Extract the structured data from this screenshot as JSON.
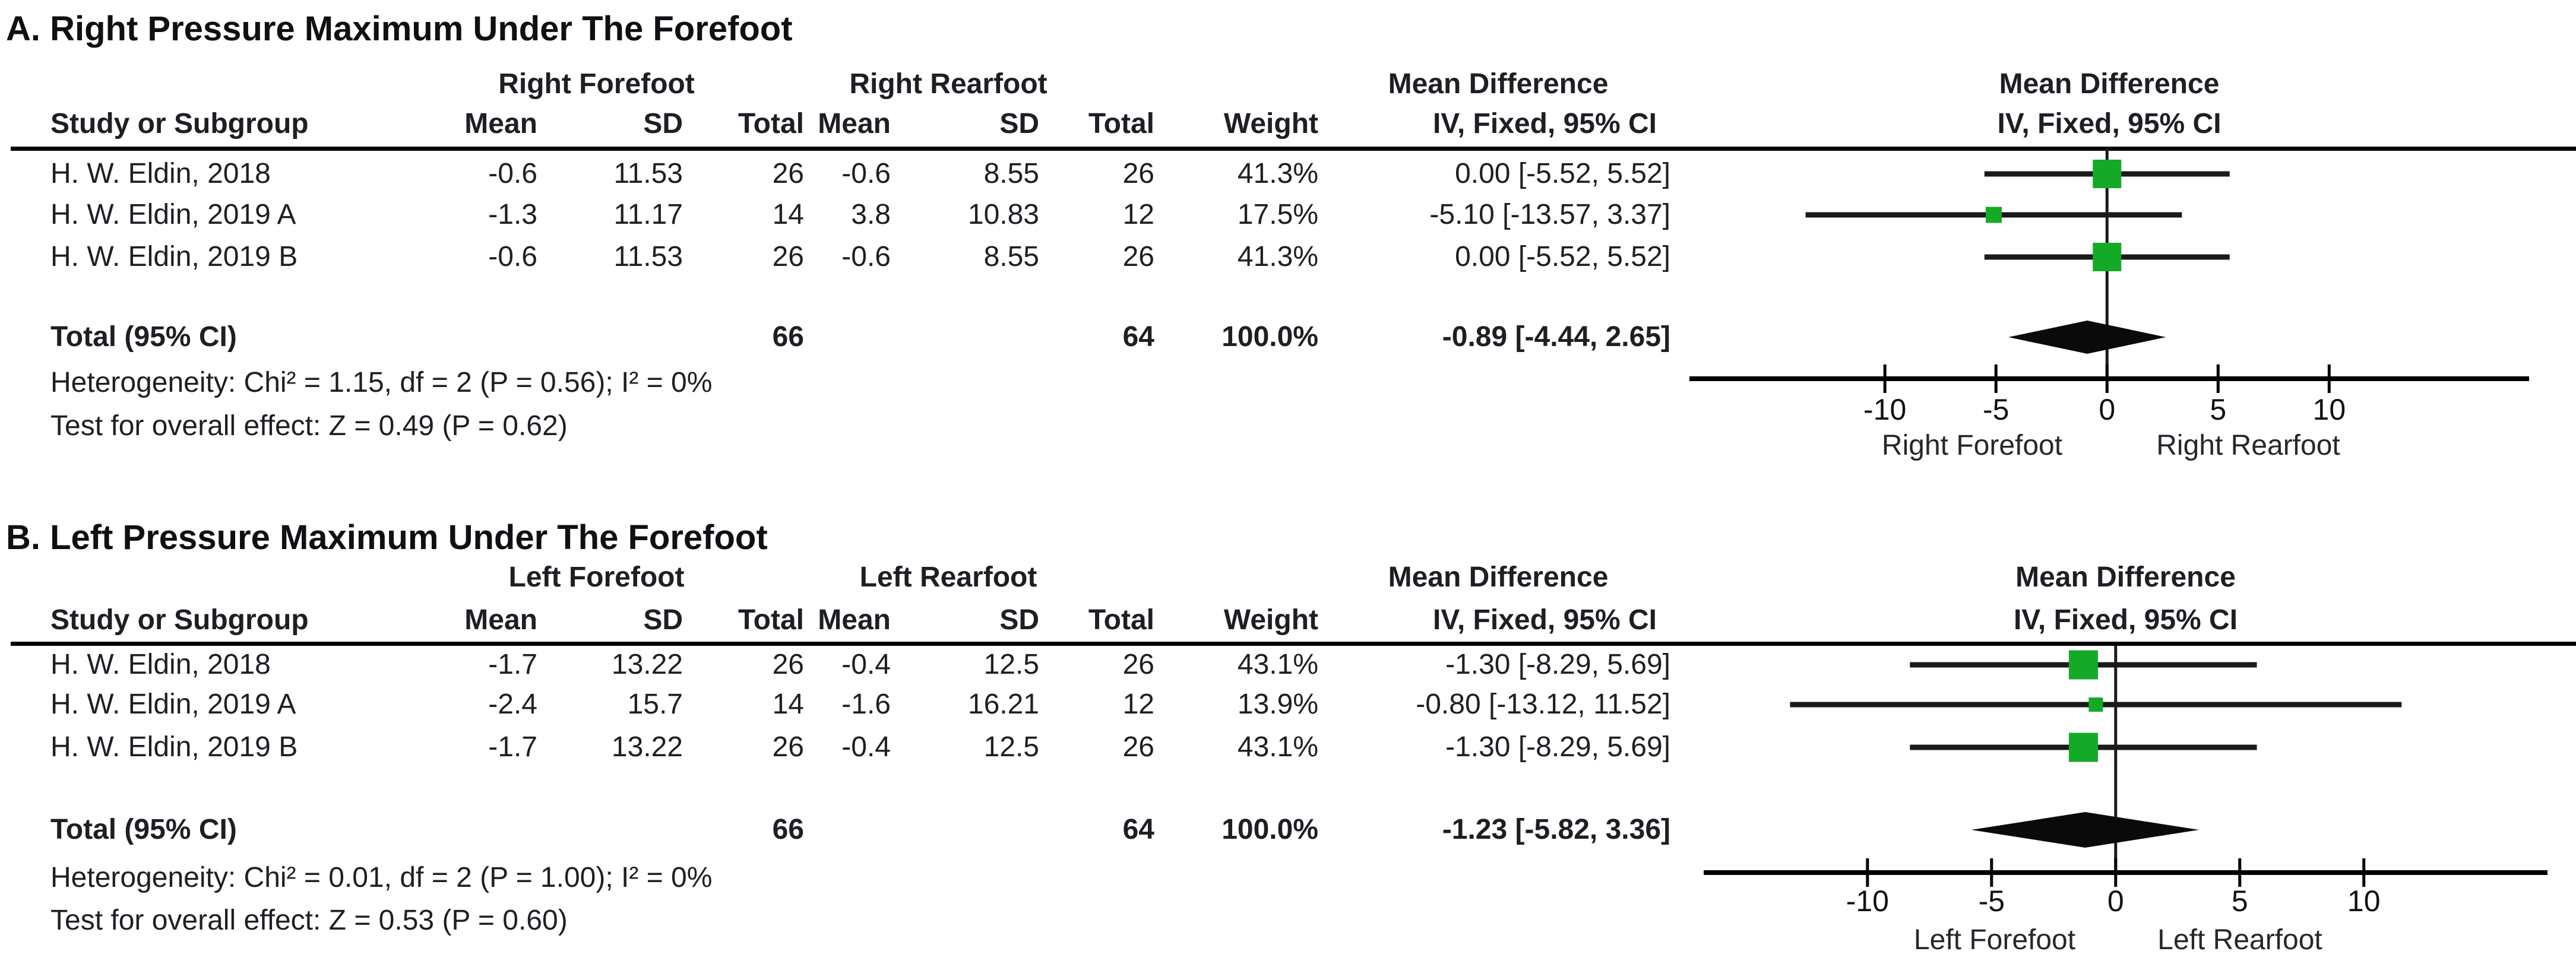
{
  "colors": {
    "square_green": "#14aa28",
    "diamond_black": "#0a0a0a",
    "line_black": "#1a1a1a"
  },
  "chart_data": [
    {
      "type": "forest",
      "title": "A. Right Pressure Maximum Under The Forefoot",
      "group1_header": "Right Forefoot",
      "group2_header": "Right Rearfoot",
      "effect_header": "Mean Difference",
      "effect_subheader": "IV, Fixed, 95% CI",
      "plot_header": "Mean Difference",
      "plot_subheader": "IV, Fixed, 95% CI",
      "columns": {
        "study": "Study or Subgroup",
        "mean": "Mean",
        "sd": "SD",
        "total": "Total",
        "weight": "Weight"
      },
      "rows": [
        {
          "study": "H. W. Eldin, 2018",
          "mean1": "-0.6",
          "sd1": "11.53",
          "total1": "26",
          "mean2": "-0.6",
          "sd2": "8.55",
          "total2": "26",
          "weight": "41.3%",
          "ci_text": "0.00 [-5.52, 5.52]",
          "est": 0.0,
          "lo": -5.52,
          "hi": 5.52,
          "weight_val": 41.3
        },
        {
          "study": "H. W. Eldin, 2019 A",
          "mean1": "-1.3",
          "sd1": "11.17",
          "total1": "14",
          "mean2": "3.8",
          "sd2": "10.83",
          "total2": "12",
          "weight": "17.5%",
          "ci_text": "-5.10 [-13.57, 3.37]",
          "est": -5.1,
          "lo": -13.57,
          "hi": 3.37,
          "weight_val": 17.5
        },
        {
          "study": "H. W. Eldin, 2019 B",
          "mean1": "-0.6",
          "sd1": "11.53",
          "total1": "26",
          "mean2": "-0.6",
          "sd2": "8.55",
          "total2": "26",
          "weight": "41.3%",
          "ci_text": "0.00 [-5.52, 5.52]",
          "est": 0.0,
          "lo": -5.52,
          "hi": 5.52,
          "weight_val": 41.3
        }
      ],
      "total": {
        "label": "Total (95% CI)",
        "total1": "66",
        "total2": "64",
        "weight": "100.0%",
        "ci_text": "-0.89 [-4.44, 2.65]",
        "est": -0.89,
        "lo": -4.44,
        "hi": 2.65
      },
      "heterogeneity": "Heterogeneity: Chi² = 1.15, df = 2 (P = 0.56); I² = 0%",
      "overall_effect": "Test for overall effect: Z = 0.49 (P = 0.62)",
      "axis": {
        "ticks": [
          -10,
          -5,
          0,
          5,
          10
        ],
        "min": -18.8,
        "max": 19.0,
        "xlabel_left": "Right Forefoot",
        "xlabel_right": "Right Rearfoot"
      }
    },
    {
      "type": "forest",
      "title": "B. Left Pressure Maximum Under The Forefoot",
      "group1_header": "Left Forefoot",
      "group2_header": "Left Rearfoot",
      "effect_header": "Mean Difference",
      "effect_subheader": "IV, Fixed, 95% CI",
      "plot_header": "Mean Difference",
      "plot_subheader": "IV, Fixed, 95% CI",
      "columns": {
        "study": "Study or Subgroup",
        "mean": "Mean",
        "sd": "SD",
        "total": "Total",
        "weight": "Weight"
      },
      "rows": [
        {
          "study": "H. W. Eldin, 2018",
          "mean1": "-1.7",
          "sd1": "13.22",
          "total1": "26",
          "mean2": "-0.4",
          "sd2": "12.5",
          "total2": "26",
          "weight": "43.1%",
          "ci_text": "-1.30 [-8.29, 5.69]",
          "est": -1.3,
          "lo": -8.29,
          "hi": 5.69,
          "weight_val": 43.1
        },
        {
          "study": "H. W. Eldin, 2019 A",
          "mean1": "-2.4",
          "sd1": "15.7",
          "total1": "14",
          "mean2": "-1.6",
          "sd2": "16.21",
          "total2": "12",
          "weight": "13.9%",
          "ci_text": "-0.80 [-13.12, 11.52]",
          "est": -0.8,
          "lo": -13.12,
          "hi": 11.52,
          "weight_val": 13.9
        },
        {
          "study": "H. W. Eldin, 2019 B",
          "mean1": "-1.7",
          "sd1": "13.22",
          "total1": "26",
          "mean2": "-0.4",
          "sd2": "12.5",
          "total2": "26",
          "weight": "43.1%",
          "ci_text": "-1.30 [-8.29, 5.69]",
          "est": -1.3,
          "lo": -8.29,
          "hi": 5.69,
          "weight_val": 43.1
        }
      ],
      "total": {
        "label": "Total (95% CI)",
        "total1": "66",
        "total2": "64",
        "weight": "100.0%",
        "ci_text": "-1.23 [-5.82, 3.36]",
        "est": -1.23,
        "lo": -5.82,
        "hi": 3.36
      },
      "heterogeneity": "Heterogeneity: Chi² = 0.01, df = 2 (P = 1.00); I² = 0%",
      "overall_effect": "Test for overall effect: Z = 0.53 (P = 0.60)",
      "axis": {
        "ticks": [
          -10,
          -5,
          0,
          5,
          10
        ],
        "min": -16.6,
        "max": 17.4,
        "xlabel_left": "Left Forefoot",
        "xlabel_right": "Left Rearfoot"
      }
    }
  ]
}
